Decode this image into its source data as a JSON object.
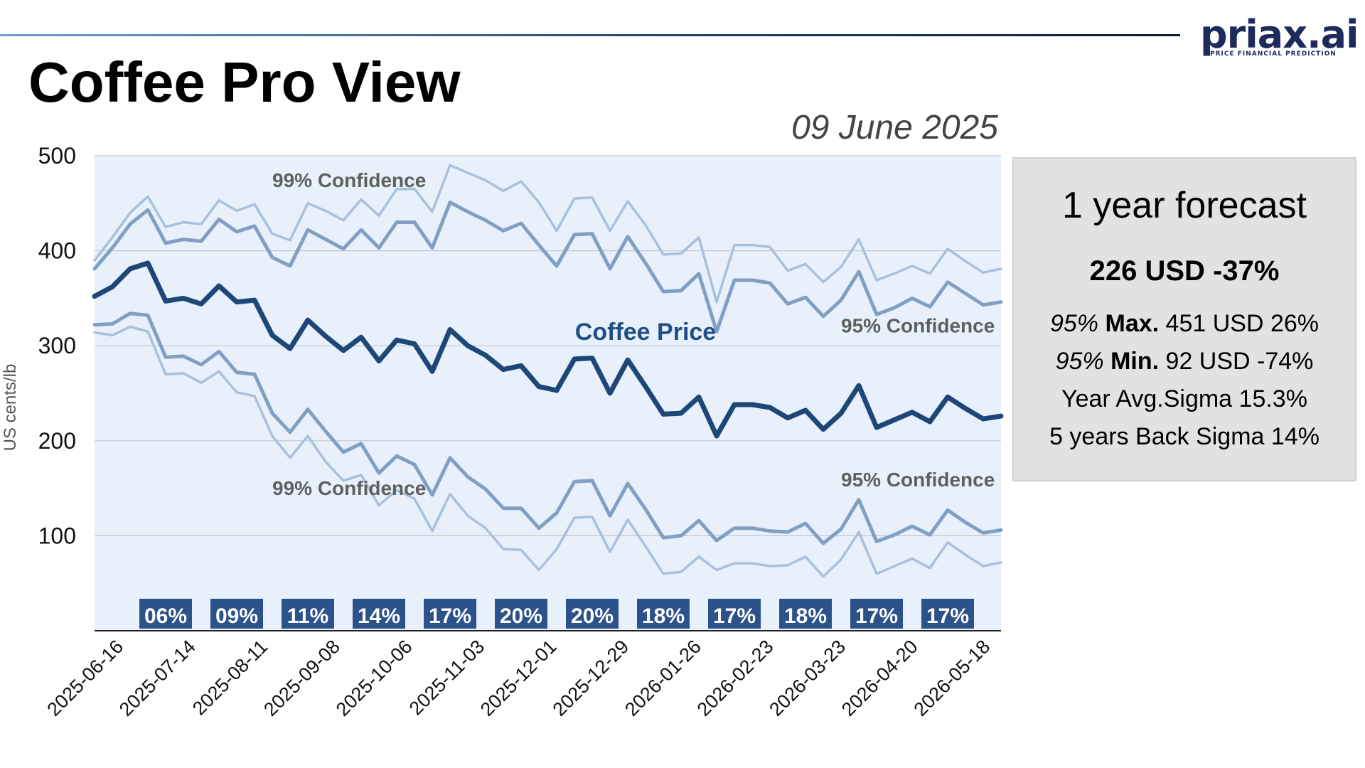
{
  "header": {
    "title": "Coffee Pro View",
    "date": "09 June 2025",
    "logo_text": "priax.ai",
    "logo_tagline": "PRICE FINANCIAL PREDICTION"
  },
  "panel": {
    "heading": "1 year forecast",
    "main": "226 USD -37%",
    "rows": [
      {
        "prefix": "95%",
        "label": "Max.",
        "value": "451 USD 26%"
      },
      {
        "prefix": "95%",
        "label": "Min.",
        "value": "92 USD -74%"
      },
      {
        "text": "Year Avg.Sigma 15.3%"
      },
      {
        "text": "5 years Back Sigma 14%"
      }
    ]
  },
  "colors": {
    "plot_bg": "#e8f1fb",
    "price": "#1e4677",
    "band95": "#819fc3",
    "band99": "#a9c0dc",
    "badge_bg": "#2b528a",
    "annotation": "#5f5f5f",
    "price_label": "#1f4e85"
  },
  "chart_data": {
    "type": "line",
    "ylabel": "US cents/lb",
    "ylim": [
      0,
      500
    ],
    "yticks": [
      100,
      200,
      300,
      400,
      500
    ],
    "grid": true,
    "xtick_labels": [
      "2025-06-16",
      "2025-07-14",
      "2025-08-11",
      "2025-09-08",
      "2025-10-06",
      "2025-11-03",
      "2025-12-01",
      "2025-12-29",
      "2026-01-26",
      "2026-02-23",
      "2026-03-23",
      "2026-04-20",
      "2026-05-18"
    ],
    "series": [
      {
        "name": "Coffee Price",
        "role": "price",
        "values": [
          352,
          362,
          381,
          387,
          347,
          350,
          344,
          363,
          346,
          348,
          311,
          297,
          327,
          310,
          295,
          309,
          284,
          306,
          302,
          273,
          317,
          300,
          290,
          275,
          279,
          257,
          253,
          286,
          287,
          250,
          285,
          257,
          228,
          229,
          246,
          205,
          238,
          238,
          235,
          224,
          232,
          212,
          229,
          258,
          214,
          222,
          230,
          220,
          246,
          234,
          223,
          226
        ]
      },
      {
        "name": "95% Confidence",
        "role": "upper95",
        "values": [
          381,
          403,
          428,
          443,
          408,
          412,
          410,
          433,
          420,
          426,
          393,
          384,
          422,
          412,
          402,
          422,
          403,
          430,
          430,
          403,
          451,
          441,
          432,
          421,
          429,
          406,
          384,
          417,
          418,
          381,
          415,
          387,
          357,
          358,
          376,
          315,
          369,
          369,
          366,
          344,
          351,
          331,
          348,
          378,
          333,
          340,
          350,
          341,
          367,
          355,
          343,
          346
        ]
      },
      {
        "name": "99% Confidence",
        "role": "upper99",
        "values": [
          390,
          414,
          440,
          457,
          425,
          430,
          428,
          453,
          442,
          449,
          418,
          411,
          450,
          442,
          432,
          454,
          437,
          465,
          465,
          441,
          490,
          482,
          474,
          463,
          473,
          451,
          421,
          455,
          456,
          421,
          452,
          427,
          396,
          397,
          414,
          346,
          406,
          406,
          404,
          379,
          386,
          367,
          383,
          412,
          369,
          376,
          384,
          376,
          402,
          389,
          377,
          381
        ]
      },
      {
        "name": "95% Confidence",
        "role": "lower95",
        "values": [
          322,
          323,
          334,
          332,
          288,
          289,
          280,
          294,
          272,
          270,
          229,
          209,
          233,
          210,
          188,
          197,
          166,
          184,
          175,
          143,
          182,
          162,
          149,
          129,
          129,
          108,
          124,
          157,
          158,
          121,
          155,
          128,
          98,
          100,
          116,
          95,
          108,
          108,
          105,
          104,
          113,
          92,
          107,
          138,
          94,
          101,
          110,
          101,
          127,
          114,
          103,
          106
        ]
      },
      {
        "name": "99% Confidence",
        "role": "lower99",
        "values": [
          314,
          311,
          320,
          315,
          270,
          271,
          261,
          273,
          251,
          247,
          205,
          182,
          205,
          178,
          158,
          164,
          132,
          148,
          139,
          105,
          144,
          121,
          108,
          86,
          85,
          64,
          86,
          119,
          120,
          83,
          117,
          89,
          60,
          62,
          78,
          64,
          71,
          71,
          68,
          69,
          78,
          57,
          75,
          104,
          60,
          68,
          76,
          66,
          93,
          80,
          68,
          72
        ]
      }
    ],
    "annotations": [
      {
        "text": "99% Confidence",
        "x_index": 10,
        "y": 467
      },
      {
        "text": "95% Confidence",
        "x_index": 42,
        "y": 314
      },
      {
        "text": "Coffee Price",
        "x_index": 31,
        "y": 306
      },
      {
        "text": "99% Confidence",
        "x_index": 10,
        "y": 143
      },
      {
        "text": "95% Confidence",
        "x_index": 42,
        "y": 152
      }
    ],
    "sigma_badges": [
      {
        "label": "06%",
        "x_index": 4
      },
      {
        "label": "09%",
        "x_index": 8
      },
      {
        "label": "11%",
        "x_index": 12
      },
      {
        "label": "14%",
        "x_index": 16
      },
      {
        "label": "17%",
        "x_index": 20
      },
      {
        "label": "20%",
        "x_index": 24
      },
      {
        "label": "20%",
        "x_index": 28
      },
      {
        "label": "18%",
        "x_index": 32
      },
      {
        "label": "17%",
        "x_index": 36
      },
      {
        "label": "18%",
        "x_index": 40
      },
      {
        "label": "17%",
        "x_index": 44
      },
      {
        "label": "17%",
        "x_index": 48
      }
    ]
  }
}
